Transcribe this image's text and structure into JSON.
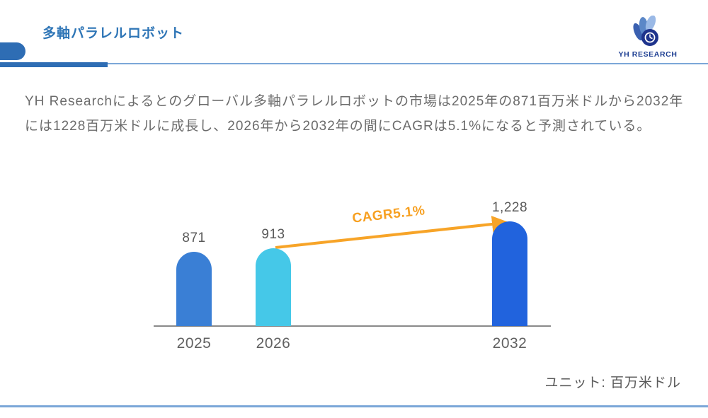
{
  "header": {
    "title": "多軸パラレルロボット",
    "logo_text": "YH RESEARCH"
  },
  "intro": {
    "lines": [
      "YH Researchによるとのグローバル多軸パラレルロボットの市場は2025年の871百万米ドルから2032年",
      "には1228百万米ドルに成長し、2026年から2032年の間にCAGRは5.1%になると予測されている。"
    ]
  },
  "chart_data": {
    "type": "bar",
    "title": "",
    "xlabel": "",
    "ylabel": "",
    "categories": [
      "2025",
      "2026",
      "2032"
    ],
    "values": [
      871,
      913,
      1228
    ],
    "value_labels": [
      "871",
      "913",
      "1,228"
    ],
    "bar_colors": [
      "#3a7fd5",
      "#45c8e8",
      "#2163dd"
    ],
    "ylim": [
      0,
      1228
    ],
    "grid": false,
    "legend": false,
    "annotation": {
      "label": "CAGR5.1%",
      "color": "#f7a021",
      "arrow_color": "#f7a428",
      "from_category": "2026",
      "to_category": "2032"
    },
    "unit_label": "ユニット: 百万米ドル",
    "axis_color": "#8a8a8a",
    "label_color": "#595959"
  },
  "colors": {
    "title_blue": "#2e75b6",
    "accent_blue": "#2e6db4",
    "light_rule_blue": "#7ba7d8",
    "logo_navy": "#1d3e92",
    "body_text_gray": "#6b6b6b"
  }
}
